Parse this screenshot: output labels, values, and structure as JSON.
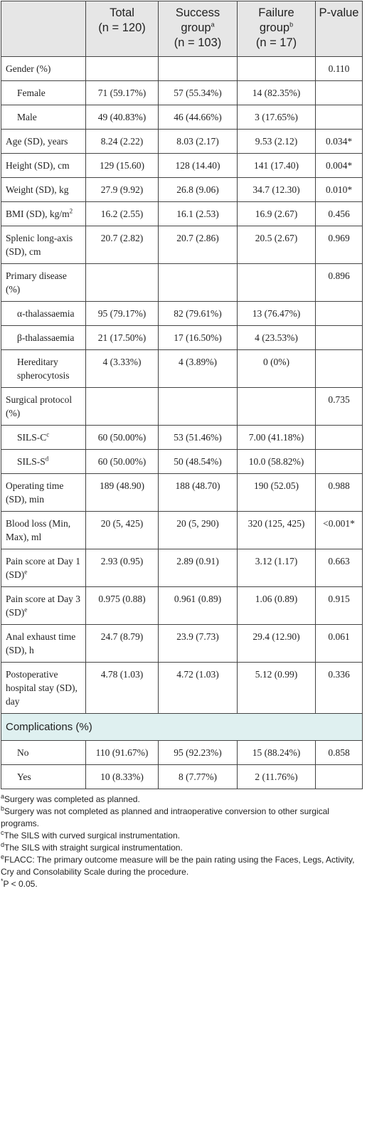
{
  "table": {
    "header": [
      {
        "label": "Total",
        "n": "(n = 120)"
      },
      {
        "label": "Success group",
        "sup": "a",
        "n": "(n = 103)"
      },
      {
        "label": "Failure group",
        "sup": "b",
        "n": "(n = 17)"
      },
      {
        "label": "P-value"
      }
    ],
    "rows": [
      {
        "label": "Gender (%)",
        "p": "0.110",
        "subrows": [
          {
            "label": "Female",
            "total": "71 (59.17%)",
            "success": "57 (55.34%)",
            "failure": "14 (82.35%)"
          },
          {
            "label": "Male",
            "total": "49 (40.83%)",
            "success": "46 (44.66%)",
            "failure": "3 (17.65%)"
          }
        ]
      },
      {
        "label": "Age (SD), years",
        "total": "8.24 (2.22)",
        "success": "8.03 (2.17)",
        "failure": "9.53 (2.12)",
        "p": "0.034*"
      },
      {
        "label": "Height (SD), cm",
        "total": "129 (15.60)",
        "success": "128 (14.40)",
        "failure": "141 (17.40)",
        "p": "0.004*"
      },
      {
        "label": "Weight (SD), kg",
        "total": "27.9 (9.92)",
        "success": "26.8 (9.06)",
        "failure": "34.7 (12.30)",
        "p": "0.010*"
      },
      {
        "label": "BMI (SD), kg/m",
        "label_sup": "2",
        "total": "16.2 (2.55)",
        "success": "16.1 (2.53)",
        "failure": "16.9 (2.67)",
        "p": "0.456"
      },
      {
        "label": "Splenic long-axis (SD), cm",
        "total": "20.7 (2.82)",
        "success": "20.7 (2.86)",
        "failure": "20.5 (2.67)",
        "p": "0.969"
      },
      {
        "label": "Primary disease (%)",
        "p": "0.896",
        "subrows": [
          {
            "label": "α-thalassaemia",
            "total": "95 (79.17%)",
            "success": "82 (79.61%)",
            "failure": "13 (76.47%)"
          },
          {
            "label": "β-thalassaemia",
            "total": "21 (17.50%)",
            "success": "17 (16.50%)",
            "failure": "4 (23.53%)"
          },
          {
            "label": "Hereditary spherocytosis",
            "total": "4 (3.33%)",
            "success": "4 (3.89%)",
            "failure": "0 (0%)"
          }
        ]
      },
      {
        "label": "Surgical protocol (%)",
        "p": "0.735",
        "subrows": [
          {
            "label": "SILS-C",
            "label_sup": "c",
            "total": "60 (50.00%)",
            "success": "53 (51.46%)",
            "failure": "7.00 (41.18%)"
          },
          {
            "label": "SILS-S",
            "label_sup": "d",
            "total": "60 (50.00%)",
            "success": "50 (48.54%)",
            "failure": "10.0 (58.82%)"
          }
        ]
      },
      {
        "label": "Operating time (SD), min",
        "total": "189 (48.90)",
        "success": "188 (48.70)",
        "failure": "190 (52.05)",
        "p": "0.988"
      },
      {
        "label": "Blood loss (Min, Max), ml",
        "total": "20 (5, 425)",
        "success": "20 (5, 290)",
        "failure": "320 (125, 425)",
        "p": "<0.001*"
      },
      {
        "label": "Pain score at Day 1 (SD)",
        "label_sup": "e",
        "total": "2.93 (0.95)",
        "success": "2.89 (0.91)",
        "failure": "3.12 (1.17)",
        "p": "0.663"
      },
      {
        "label": "Pain score at Day 3 (SD)",
        "label_sup": "e",
        "total": "0.975 (0.88)",
        "success": "0.961 (0.89)",
        "failure": "1.06 (0.89)",
        "p": "0.915"
      },
      {
        "label": "Anal exhaust time (SD), h",
        "total": "24.7 (8.79)",
        "success": "23.9 (7.73)",
        "failure": "29.4 (12.90)",
        "p": "0.061"
      },
      {
        "label": "Postoperative hospital stay (SD), day",
        "total": "4.78 (1.03)",
        "success": "4.72 (1.03)",
        "failure": "5.12 (0.99)",
        "p": "0.336"
      }
    ],
    "section": {
      "label": "Complications (%)",
      "rows": [
        {
          "label": "No",
          "total": "110 (91.67%)",
          "success": "95 (92.23%)",
          "failure": "15 (88.24%)",
          "p": "0.858"
        },
        {
          "label": "Yes",
          "total": "10 (8.33%)",
          "success": "8 (7.77%)",
          "failure": "2 (11.76%)"
        }
      ]
    }
  },
  "footnotes": [
    {
      "mark": "a",
      "text": "Surgery was completed as planned."
    },
    {
      "mark": "b",
      "text": "Surgery was not completed as planned and intraoperative conversion to other surgical programs."
    },
    {
      "mark": "c",
      "text": "The SILS with curved surgical instrumentation."
    },
    {
      "mark": "d",
      "text": "The SILS with straight surgical instrumentation."
    },
    {
      "mark": "e",
      "text": "FLACC: The primary outcome measure will be the pain rating using the Faces, Legs, Activity, Cry and Consolability Scale during the procedure."
    },
    {
      "mark": "*",
      "text": "P < 0.05."
    }
  ]
}
